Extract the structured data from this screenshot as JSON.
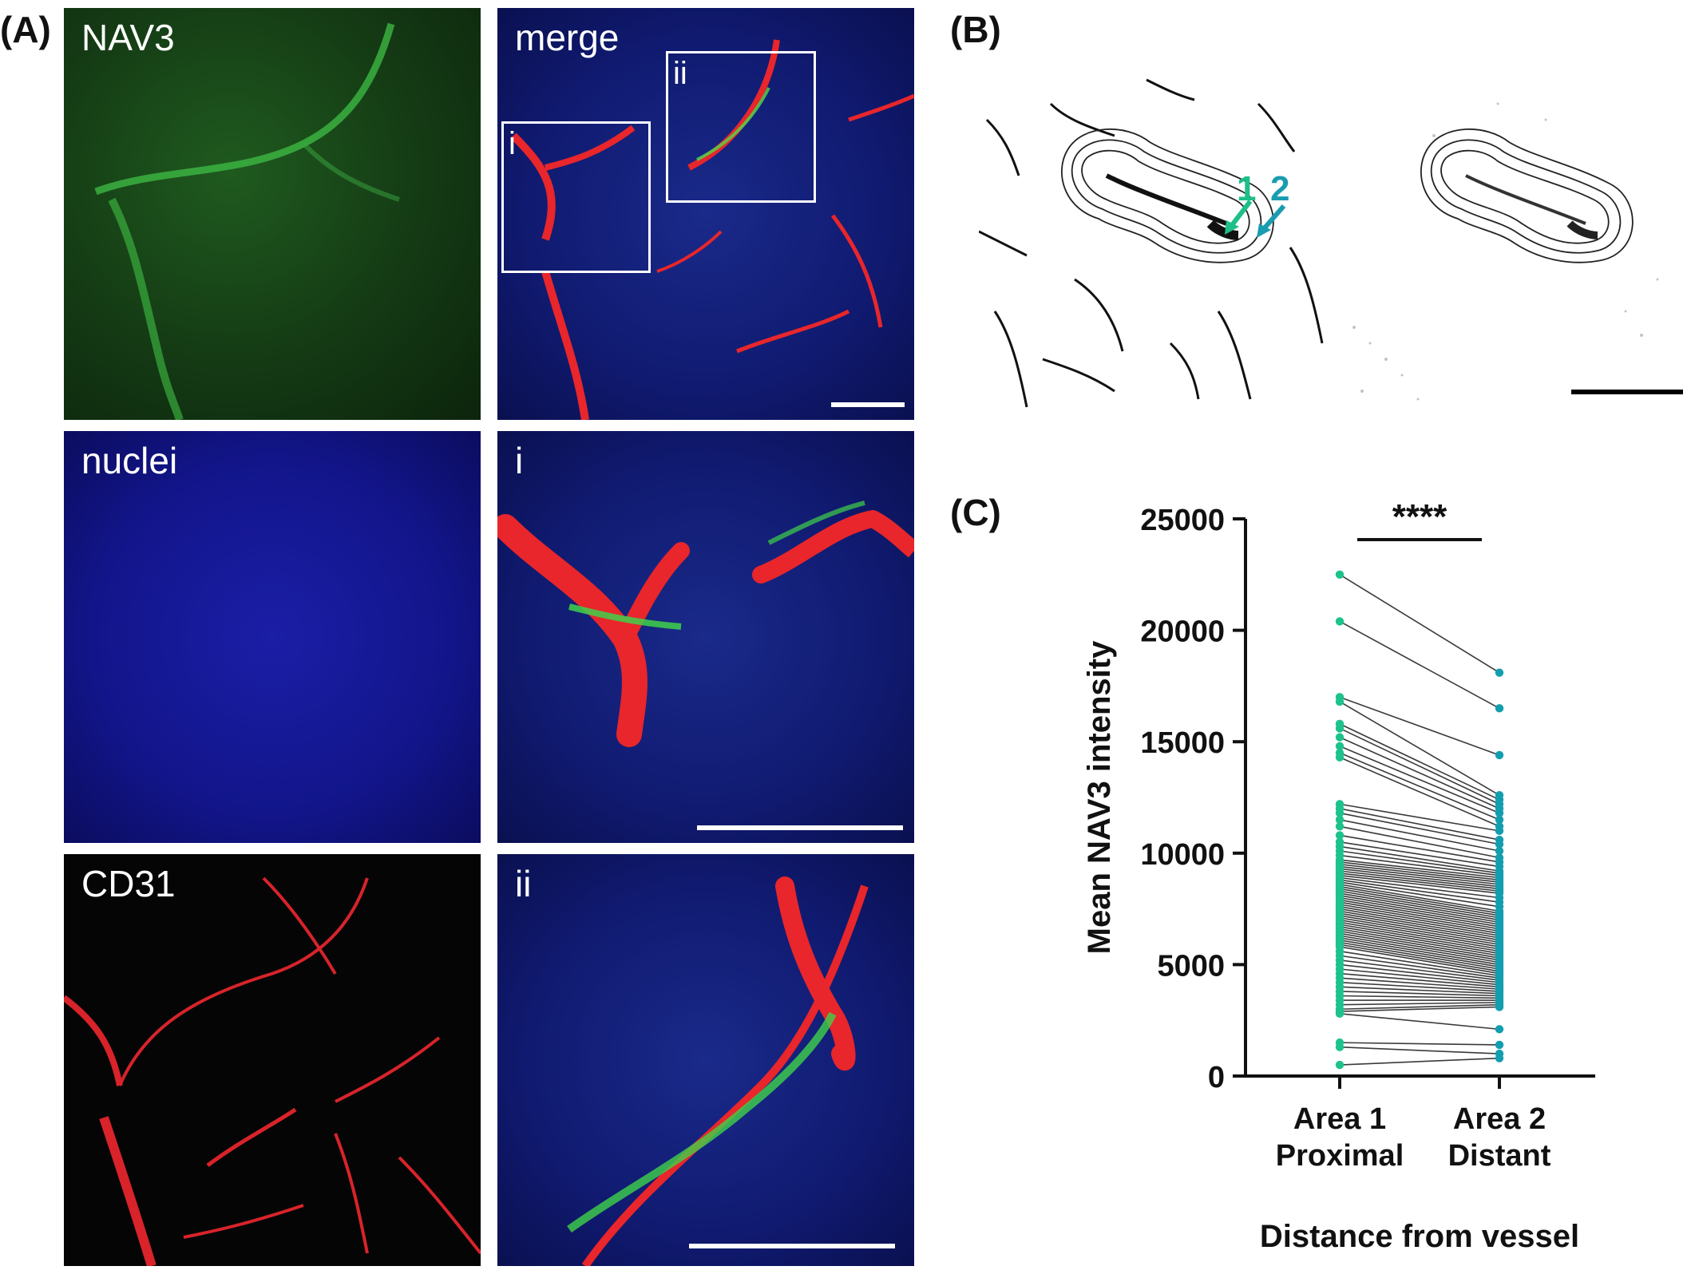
{
  "panel_a": {
    "letter": "(A)",
    "tiles": {
      "nav3": "NAV3",
      "merge": "merge",
      "nuclei": "nuclei",
      "inset_i": "i",
      "cd31": "CD31",
      "inset_ii": "ii",
      "box_i": "i",
      "box_ii": "ii"
    }
  },
  "panel_b": {
    "letter": "(B)",
    "arrow1_label": "1",
    "arrow2_label": "2",
    "arrow1_color": "#1dbf8a",
    "arrow2_color": "#1a9cb0"
  },
  "panel_c": {
    "letter": "(C)",
    "significance": "****"
  },
  "colors": {
    "proximal": "#1dc28d",
    "distant": "#139eb0",
    "line": "#3a3a3a",
    "nav3_green": "#3fd24a",
    "cd31_red": "#e8262b",
    "nuclei_blue": "#2a2fd8"
  },
  "chart_data": {
    "type": "line",
    "title": "",
    "xlabel": "Distance from vessel",
    "ylabel": "Mean NAV3 intensity",
    "ylim": [
      0,
      25000
    ],
    "yticks": [
      0,
      5000,
      10000,
      15000,
      20000,
      25000
    ],
    "yticklabels": [
      "0",
      "5000",
      "10000",
      "15000",
      "20000",
      "25000"
    ],
    "categories": [
      {
        "line1": "Area 1",
        "line2": "Proximal"
      },
      {
        "line1": "Area 2",
        "line2": "Distant"
      }
    ],
    "paired_values": [
      [
        22500,
        18100
      ],
      [
        20400,
        16500
      ],
      [
        17000,
        14400
      ],
      [
        16800,
        12600
      ],
      [
        15800,
        12400
      ],
      [
        15600,
        12200
      ],
      [
        15200,
        12000
      ],
      [
        14800,
        11800
      ],
      [
        14500,
        11500
      ],
      [
        14300,
        11200
      ],
      [
        12200,
        11000
      ],
      [
        12000,
        10600
      ],
      [
        11800,
        10400
      ],
      [
        11500,
        10100
      ],
      [
        11200,
        9800
      ],
      [
        10800,
        9600
      ],
      [
        10500,
        9400
      ],
      [
        10300,
        9200
      ],
      [
        10100,
        9100
      ],
      [
        9900,
        9000
      ],
      [
        9700,
        8900
      ],
      [
        9600,
        8800
      ],
      [
        9500,
        8700
      ],
      [
        9400,
        8600
      ],
      [
        9300,
        8500
      ],
      [
        9200,
        8400
      ],
      [
        9100,
        8300
      ],
      [
        9000,
        8200
      ],
      [
        8900,
        8000
      ],
      [
        8800,
        7800
      ],
      [
        8700,
        7600
      ],
      [
        8600,
        7400
      ],
      [
        8500,
        7300
      ],
      [
        8400,
        7200
      ],
      [
        8300,
        7100
      ],
      [
        8200,
        7000
      ],
      [
        8100,
        6900
      ],
      [
        8000,
        6800
      ],
      [
        7900,
        6700
      ],
      [
        7800,
        6600
      ],
      [
        7700,
        6500
      ],
      [
        7600,
        6400
      ],
      [
        7500,
        6300
      ],
      [
        7400,
        6200
      ],
      [
        7300,
        6100
      ],
      [
        7200,
        6000
      ],
      [
        7100,
        5900
      ],
      [
        7000,
        5800
      ],
      [
        6900,
        5700
      ],
      [
        6800,
        5600
      ],
      [
        6700,
        5500
      ],
      [
        6600,
        5400
      ],
      [
        6500,
        5300
      ],
      [
        6400,
        5200
      ],
      [
        6300,
        5100
      ],
      [
        6200,
        5000
      ],
      [
        6100,
        4900
      ],
      [
        6000,
        4800
      ],
      [
        5900,
        4700
      ],
      [
        5800,
        4600
      ],
      [
        5600,
        4500
      ],
      [
        5400,
        4400
      ],
      [
        5200,
        4300
      ],
      [
        5000,
        4200
      ],
      [
        4800,
        4100
      ],
      [
        4600,
        4000
      ],
      [
        4400,
        3900
      ],
      [
        4200,
        3800
      ],
      [
        4000,
        3700
      ],
      [
        3800,
        3600
      ],
      [
        3600,
        3500
      ],
      [
        3400,
        3400
      ],
      [
        3200,
        3300
      ],
      [
        3000,
        3200
      ],
      [
        2900,
        3100
      ],
      [
        2800,
        2100
      ],
      [
        1500,
        1400
      ],
      [
        1300,
        1000
      ],
      [
        500,
        800
      ]
    ],
    "significance": "****"
  }
}
